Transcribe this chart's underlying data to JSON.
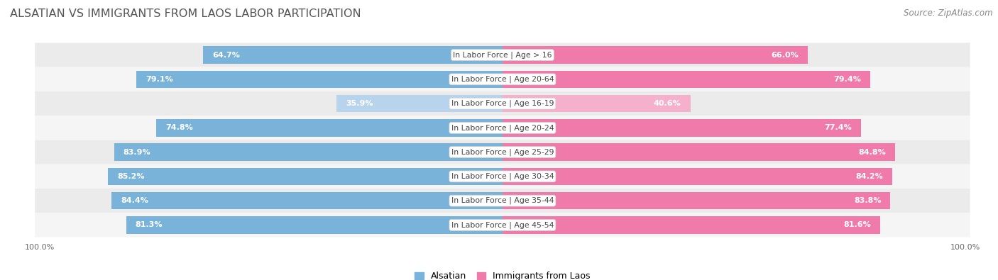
{
  "title": "Alsatian vs Immigrants from Laos Labor Participation",
  "title_display": "ALSATIAN VS IMMIGRANTS FROM LAOS LABOR PARTICIPATION",
  "source": "Source: ZipAtlas.com",
  "categories": [
    "In Labor Force | Age > 16",
    "In Labor Force | Age 20-64",
    "In Labor Force | Age 16-19",
    "In Labor Force | Age 20-24",
    "In Labor Force | Age 25-29",
    "In Labor Force | Age 30-34",
    "In Labor Force | Age 35-44",
    "In Labor Force | Age 45-54"
  ],
  "alsatian_values": [
    64.7,
    79.1,
    35.9,
    74.8,
    83.9,
    85.2,
    84.4,
    81.3
  ],
  "laos_values": [
    66.0,
    79.4,
    40.6,
    77.4,
    84.8,
    84.2,
    83.8,
    81.6
  ],
  "alsatian_color": "#7ab3d9",
  "alsatian_light_color": "#b8d4ec",
  "laos_color": "#f07baa",
  "laos_light_color": "#f5b0cc",
  "row_bg_color_odd": "#ebebeb",
  "row_bg_color_even": "#f5f5f5",
  "max_value": 100.0,
  "bar_height": 0.72,
  "background_color": "#ffffff",
  "title_fontsize": 11.5,
  "source_fontsize": 8.5,
  "label_fontsize": 7.8,
  "value_fontsize": 8.0,
  "legend_fontsize": 9,
  "footer_fontsize": 8,
  "alsatian_label": "Alsatian",
  "laos_label": "Immigrants from Laos"
}
